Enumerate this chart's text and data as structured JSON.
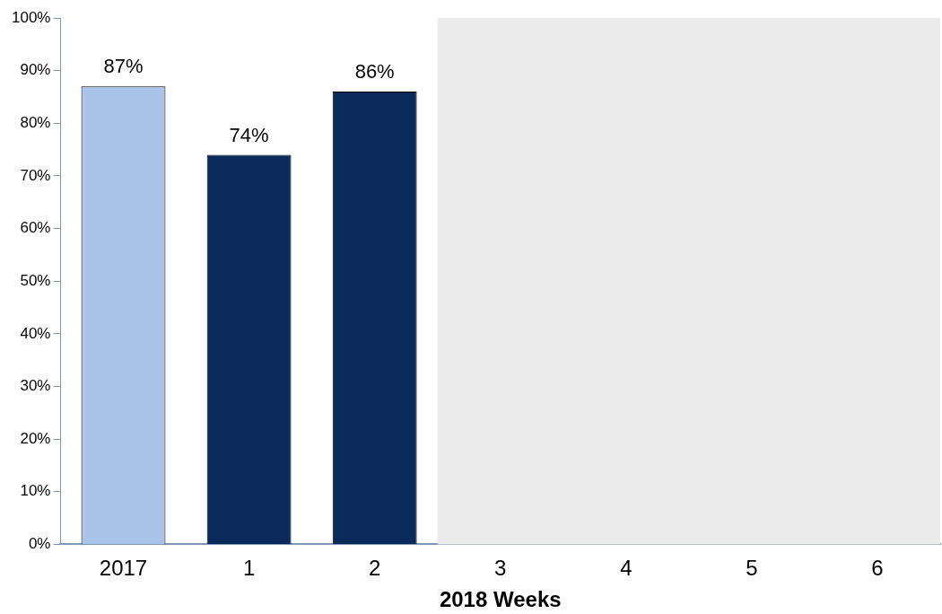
{
  "chart_data": {
    "type": "bar",
    "xlabel": "2018 Weeks",
    "categories": [
      "2017",
      "1",
      "2",
      "3",
      "4",
      "5",
      "6"
    ],
    "values": [
      87,
      74,
      86,
      null,
      null,
      null,
      null
    ],
    "colors": [
      "#a9c4e8",
      "#0a2a5c",
      "#0a2a5c",
      "#0a2a5c",
      "#0a2a5c",
      "#0a2a5c",
      "#0a2a5c"
    ],
    "value_labels": [
      "87%",
      "74%",
      "86%",
      null,
      null,
      null,
      null
    ],
    "ylim": [
      0,
      100
    ],
    "yticks": [
      {
        "value": 0,
        "label": "0%"
      },
      {
        "value": 10,
        "label": "10%"
      },
      {
        "value": 20,
        "label": "20%"
      },
      {
        "value": 30,
        "label": "30%"
      },
      {
        "value": 40,
        "label": "40%"
      },
      {
        "value": 50,
        "label": "50%"
      },
      {
        "value": 60,
        "label": "60%"
      },
      {
        "value": 70,
        "label": "70%"
      },
      {
        "value": 80,
        "label": "80%"
      },
      {
        "value": 90,
        "label": "90%"
      },
      {
        "value": 100,
        "label": "100%"
      }
    ],
    "bands": [
      {
        "axis": "x",
        "from": "3",
        "to": "6",
        "color": "#ebebeb"
      }
    ],
    "grid": false,
    "legend": false
  }
}
